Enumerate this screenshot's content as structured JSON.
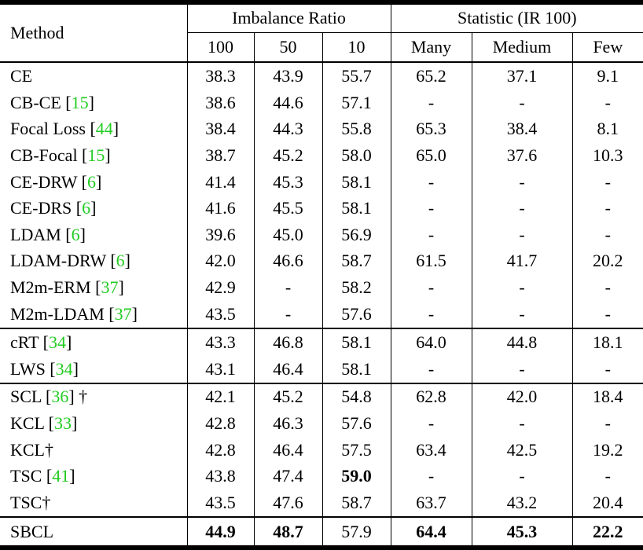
{
  "table": {
    "cite_color": "#22cc22",
    "headers": {
      "method": "Method",
      "group_imbalance": "Imbalance Ratio",
      "group_statistic": "Statistic (IR 100)",
      "sub": [
        "100",
        "50",
        "10",
        "Many",
        "Medium",
        "Few"
      ]
    },
    "rows": [
      {
        "method": [
          {
            "text": "CE"
          }
        ],
        "values": [
          "38.3",
          "43.9",
          "55.7",
          "65.2",
          "37.1",
          "9.1"
        ],
        "bold": [],
        "section_start": false
      },
      {
        "method": [
          {
            "text": "CB-CE ["
          },
          {
            "text": "15",
            "cite": true
          },
          {
            "text": "]"
          }
        ],
        "values": [
          "38.6",
          "44.6",
          "57.1",
          "-",
          "-",
          "-"
        ],
        "bold": [],
        "section_start": false
      },
      {
        "method": [
          {
            "text": "Focal Loss ["
          },
          {
            "text": "44",
            "cite": true
          },
          {
            "text": "]"
          }
        ],
        "values": [
          "38.4",
          "44.3",
          "55.8",
          "65.3",
          "38.4",
          "8.1"
        ],
        "bold": [],
        "section_start": false
      },
      {
        "method": [
          {
            "text": "CB-Focal ["
          },
          {
            "text": "15",
            "cite": true
          },
          {
            "text": "]"
          }
        ],
        "values": [
          "38.7",
          "45.2",
          "58.0",
          "65.0",
          "37.6",
          "10.3"
        ],
        "bold": [],
        "section_start": false
      },
      {
        "method": [
          {
            "text": "CE-DRW ["
          },
          {
            "text": "6",
            "cite": true
          },
          {
            "text": "]"
          }
        ],
        "values": [
          "41.4",
          "45.3",
          "58.1",
          "-",
          "-",
          "-"
        ],
        "bold": [],
        "section_start": false
      },
      {
        "method": [
          {
            "text": "CE-DRS ["
          },
          {
            "text": "6",
            "cite": true
          },
          {
            "text": "]"
          }
        ],
        "values": [
          "41.6",
          "45.5",
          "58.1",
          "-",
          "-",
          "-"
        ],
        "bold": [],
        "section_start": false
      },
      {
        "method": [
          {
            "text": "LDAM ["
          },
          {
            "text": "6",
            "cite": true
          },
          {
            "text": "]"
          }
        ],
        "values": [
          "39.6",
          "45.0",
          "56.9",
          "-",
          "-",
          "-"
        ],
        "bold": [],
        "section_start": false
      },
      {
        "method": [
          {
            "text": "LDAM-DRW ["
          },
          {
            "text": "6",
            "cite": true
          },
          {
            "text": "]"
          }
        ],
        "values": [
          "42.0",
          "46.6",
          "58.7",
          "61.5",
          "41.7",
          "20.2"
        ],
        "bold": [],
        "section_start": false
      },
      {
        "method": [
          {
            "text": "M2m-ERM ["
          },
          {
            "text": "37",
            "cite": true
          },
          {
            "text": "]"
          }
        ],
        "values": [
          "42.9",
          "-",
          "58.2",
          "-",
          "-",
          "-"
        ],
        "bold": [],
        "section_start": false
      },
      {
        "method": [
          {
            "text": "M2m-LDAM ["
          },
          {
            "text": "37",
            "cite": true
          },
          {
            "text": "]"
          }
        ],
        "values": [
          "43.5",
          "-",
          "57.6",
          "-",
          "-",
          "-"
        ],
        "bold": [],
        "section_start": false
      },
      {
        "method": [
          {
            "text": "cRT ["
          },
          {
            "text": "34",
            "cite": true
          },
          {
            "text": "]"
          }
        ],
        "values": [
          "43.3",
          "46.8",
          "58.1",
          "64.0",
          "44.8",
          "18.1"
        ],
        "bold": [],
        "section_start": true
      },
      {
        "method": [
          {
            "text": "LWS ["
          },
          {
            "text": "34",
            "cite": true
          },
          {
            "text": "]"
          }
        ],
        "values": [
          "43.1",
          "46.4",
          "58.1",
          "-",
          "-",
          "-"
        ],
        "bold": [],
        "section_start": false
      },
      {
        "method": [
          {
            "text": "SCL ["
          },
          {
            "text": "36",
            "cite": true
          },
          {
            "text": "] †"
          }
        ],
        "values": [
          "42.1",
          "45.2",
          "54.8",
          "62.8",
          "42.0",
          "18.4"
        ],
        "bold": [],
        "section_start": true
      },
      {
        "method": [
          {
            "text": "KCL ["
          },
          {
            "text": "33",
            "cite": true
          },
          {
            "text": "]"
          }
        ],
        "values": [
          "42.8",
          "46.3",
          "57.6",
          "-",
          "-",
          "-"
        ],
        "bold": [],
        "section_start": false
      },
      {
        "method": [
          {
            "text": "KCL†"
          }
        ],
        "values": [
          "42.8",
          "46.4",
          "57.5",
          "63.4",
          "42.5",
          "19.2"
        ],
        "bold": [],
        "section_start": false
      },
      {
        "method": [
          {
            "text": "TSC ["
          },
          {
            "text": "41",
            "cite": true
          },
          {
            "text": "]"
          }
        ],
        "values": [
          "43.8",
          "47.4",
          "59.0",
          "-",
          "-",
          "-"
        ],
        "bold": [
          2
        ],
        "section_start": false
      },
      {
        "method": [
          {
            "text": "TSC†"
          }
        ],
        "values": [
          "43.5",
          "47.6",
          "58.7",
          "63.7",
          "43.2",
          "20.4"
        ],
        "bold": [],
        "section_start": false
      },
      {
        "method": [
          {
            "text": "SBCL"
          }
        ],
        "values": [
          "44.9",
          "48.7",
          "57.9",
          "64.4",
          "45.3",
          "22.2"
        ],
        "bold": [
          0,
          1,
          3,
          4,
          5
        ],
        "section_start": true
      }
    ]
  }
}
